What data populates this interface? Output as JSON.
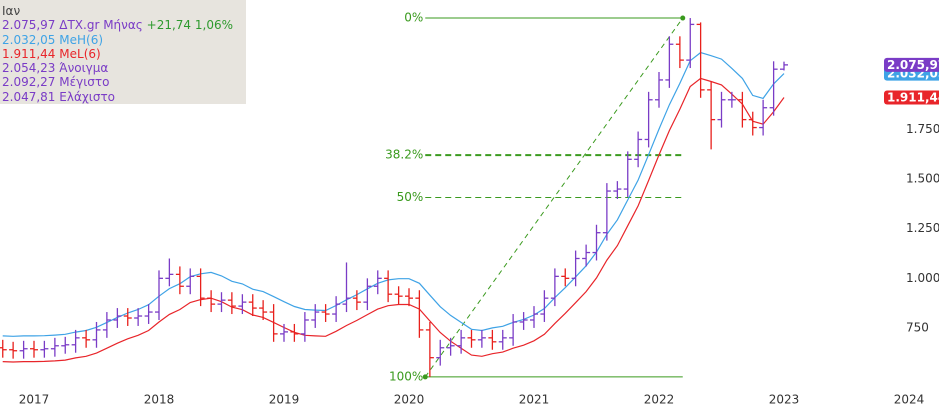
{
  "chart_data": {
    "type": "ohlc",
    "period_label": "Ιαν",
    "x": [
      2016.75,
      2016.833,
      2016.917,
      2017,
      2017.083,
      2017.167,
      2017.25,
      2017.333,
      2017.417,
      2017.5,
      2017.583,
      2017.667,
      2017.75,
      2017.833,
      2017.917,
      2018,
      2018.083,
      2018.167,
      2018.25,
      2018.333,
      2018.417,
      2018.5,
      2018.583,
      2018.667,
      2018.75,
      2018.833,
      2018.917,
      2019,
      2019.083,
      2019.167,
      2019.25,
      2019.333,
      2019.417,
      2019.5,
      2019.583,
      2019.667,
      2019.75,
      2019.833,
      2019.917,
      2020,
      2020.083,
      2020.167,
      2020.25,
      2020.333,
      2020.417,
      2020.5,
      2020.583,
      2020.667,
      2020.75,
      2020.833,
      2020.917,
      2021,
      2021.083,
      2021.167,
      2021.25,
      2021.333,
      2021.417,
      2021.5,
      2021.583,
      2021.667,
      2021.75,
      2021.833,
      2021.917,
      2022,
      2022.083,
      2022.167,
      2022.25,
      2022.333,
      2022.417,
      2022.5,
      2022.583,
      2022.667,
      2022.75,
      2022.833,
      2022.917,
      2023
    ],
    "xlim": [
      2016.728,
      2024.24
    ],
    "xticks": [
      2017,
      2018,
      2019,
      2020,
      2021,
      2022,
      2023,
      2024
    ],
    "ylim": [
      427,
      2403
    ],
    "yticks": [
      750,
      {
        "value": 1000,
        "label": "1.000"
      },
      {
        "value": 1250,
        "label": "1.250"
      },
      {
        "value": 1500,
        "label": "1.500"
      },
      {
        "value": 1750,
        "label": "1.750"
      }
    ],
    "ohlc": {
      "name": "ΔΤΧ.gr Μήνας",
      "up_color": "#7a3cc6",
      "down_color": "#e8201c",
      "open": [
        650,
        640,
        635,
        645,
        640,
        645,
        660,
        665,
        700,
        690,
        740,
        790,
        810,
        800,
        810,
        830,
        1000,
        1020,
        960,
        1010,
        900,
        870,
        890,
        860,
        880,
        850,
        830,
        720,
        730,
        720,
        790,
        830,
        820,
        870,
        900,
        880,
        960,
        1000,
        920,
        910,
        900,
        740,
        600,
        650,
        660,
        700,
        690,
        700,
        680,
        700,
        780,
        790,
        820,
        900,
        1010,
        1000,
        1100,
        1130,
        1230,
        1440,
        1450,
        1600,
        1700,
        1900,
        2000,
        2180,
        2100,
        2280,
        1950,
        1800,
        1900,
        1900,
        1800,
        1760,
        1860,
        2054.23
      ],
      "high": [
        690,
        680,
        685,
        685,
        685,
        700,
        705,
        740,
        740,
        780,
        830,
        850,
        850,
        850,
        870,
        1040,
        1100,
        1060,
        1050,
        1050,
        940,
        930,
        930,
        920,
        920,
        890,
        870,
        770,
        770,
        830,
        870,
        870,
        910,
        1080,
        940,
        1000,
        1040,
        1040,
        960,
        950,
        940,
        780,
        690,
        700,
        740,
        740,
        740,
        740,
        740,
        820,
        830,
        860,
        940,
        1050,
        1050,
        1140,
        1170,
        1270,
        1480,
        1490,
        1640,
        1740,
        1940,
        2040,
        2220,
        2220,
        2312,
        2290,
        1990,
        1940,
        1940,
        1940,
        1840,
        1900,
        2094,
        2092.27
      ],
      "low": [
        600,
        595,
        595,
        600,
        600,
        605,
        620,
        625,
        650,
        650,
        700,
        750,
        760,
        760,
        770,
        790,
        960,
        920,
        920,
        860,
        830,
        830,
        820,
        820,
        810,
        790,
        680,
        680,
        680,
        680,
        750,
        780,
        780,
        830,
        840,
        840,
        920,
        880,
        870,
        860,
        700,
        503,
        560,
        610,
        620,
        650,
        650,
        640,
        640,
        660,
        740,
        750,
        780,
        860,
        960,
        960,
        1060,
        1090,
        1190,
        1400,
        1410,
        1560,
        1660,
        1860,
        1960,
        2060,
        2060,
        1910,
        1650,
        1760,
        1860,
        1760,
        1720,
        1720,
        1820,
        2047.81
      ],
      "close": [
        640,
        635,
        645,
        640,
        645,
        660,
        665,
        700,
        690,
        740,
        790,
        810,
        800,
        810,
        830,
        1000,
        1020,
        960,
        1010,
        900,
        870,
        890,
        860,
        880,
        850,
        830,
        720,
        730,
        720,
        790,
        830,
        820,
        870,
        900,
        880,
        960,
        1000,
        920,
        910,
        900,
        740,
        600,
        650,
        660,
        700,
        690,
        700,
        680,
        700,
        780,
        790,
        820,
        900,
        1010,
        1000,
        1100,
        1130,
        1230,
        1440,
        1450,
        1600,
        1700,
        1900,
        2000,
        2180,
        2100,
        2280,
        1950,
        1800,
        1900,
        1900,
        1800,
        1760,
        1860,
        2054.23,
        2075.97
      ],
      "close_label": "2.075,97",
      "change": 21.74,
      "change_label": "+21,74",
      "change_pct": 1.06,
      "change_pct_label": "1,06%",
      "change_color": "#2e9a2e"
    },
    "stats": [
      {
        "name": "Άνοιγμα",
        "value": 2054.23,
        "value_label": "2.054,23"
      },
      {
        "name": "Μέγιστο",
        "value": 2092.27,
        "value_label": "2.092,27"
      },
      {
        "name": "Ελάχιστο",
        "value": 2047.81,
        "value_label": "2.047,81"
      }
    ],
    "series": [
      {
        "name": "MeH(6)",
        "color": "#3fa3e6",
        "last_label": "2.032,05",
        "values": [
          710,
          708,
          710,
          710,
          711,
          714,
          718,
          729,
          737,
          753,
          778,
          803,
          825,
          843,
          867,
          910,
          948,
          973,
          1008,
          1023,
          1030,
          1012,
          985,
          972,
          945,
          933,
          908,
          882,
          858,
          843,
          840,
          838,
          863,
          892,
          918,
          947,
          975,
          992,
          998,
          998,
          975,
          915,
          857,
          813,
          778,
          743,
          737,
          750,
          758,
          778,
          793,
          815,
          848,
          903,
          953,
          1007,
          1063,
          1132,
          1222,
          1295,
          1395,
          1495,
          1623,
          1752,
          1875,
          1983,
          2097,
          2138,
          2122,
          2105,
          2058,
          2008,
          1922,
          1907,
          1980,
          2032.05
        ]
      },
      {
        "name": "MeL(6)",
        "color": "#e8252a",
        "last_label": "1.911,44",
        "values": [
          580,
          578,
          580,
          580,
          581,
          584,
          588,
          599,
          607,
          623,
          648,
          673,
          695,
          713,
          737,
          780,
          818,
          843,
          878,
          893,
          900,
          882,
          855,
          842,
          815,
          803,
          778,
          752,
          728,
          713,
          710,
          708,
          733,
          762,
          788,
          817,
          845,
          862,
          868,
          868,
          845,
          785,
          727,
          683,
          648,
          613,
          607,
          620,
          628,
          648,
          663,
          685,
          718,
          773,
          823,
          877,
          933,
          1002,
          1092,
          1165,
          1265,
          1365,
          1493,
          1622,
          1745,
          1853,
          1967,
          2008,
          1992,
          1975,
          1928,
          1878,
          1792,
          1777,
          1840,
          1911.44
        ]
      }
    ],
    "fibonacci": {
      "color": "#3a9a1e",
      "x_start": 2020.13,
      "x_end": 2022.19,
      "levels": [
        {
          "level": 0,
          "level_label": "0%",
          "price": 2312,
          "line": "solid"
        },
        {
          "level": 38.2,
          "level_label": "38.2%",
          "price": 1621,
          "line": "bold-dashed"
        },
        {
          "level": 50,
          "level_label": "50%",
          "price": 1407.5,
          "line": "dashed"
        },
        {
          "level": 100,
          "level_label": "100%",
          "price": 503,
          "line": "solid"
        }
      ]
    }
  }
}
